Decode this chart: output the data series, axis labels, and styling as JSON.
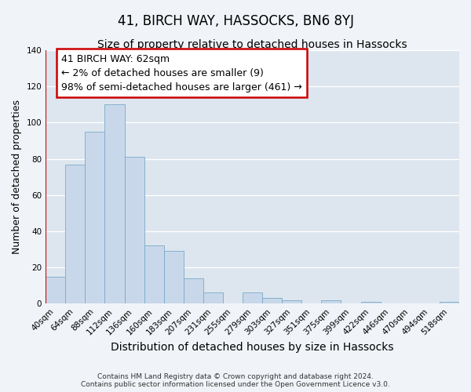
{
  "title": "41, BIRCH WAY, HASSOCKS, BN6 8YJ",
  "subtitle": "Size of property relative to detached houses in Hassocks",
  "xlabel": "Distribution of detached houses by size in Hassocks",
  "ylabel": "Number of detached properties",
  "bar_labels": [
    "40sqm",
    "64sqm",
    "88sqm",
    "112sqm",
    "136sqm",
    "160sqm",
    "183sqm",
    "207sqm",
    "231sqm",
    "255sqm",
    "279sqm",
    "303sqm",
    "327sqm",
    "351sqm",
    "375sqm",
    "399sqm",
    "422sqm",
    "446sqm",
    "470sqm",
    "494sqm",
    "518sqm"
  ],
  "bar_values": [
    15,
    77,
    95,
    110,
    81,
    32,
    29,
    14,
    6,
    0,
    6,
    3,
    2,
    0,
    2,
    0,
    1,
    0,
    0,
    0,
    1
  ],
  "bar_color": "#c8d8ea",
  "bar_edge_color": "#7aaac8",
  "ylim": [
    0,
    140
  ],
  "yticks": [
    0,
    20,
    40,
    60,
    80,
    100,
    120,
    140
  ],
  "vline_color": "#cc0000",
  "annotation_lines": [
    "41 BIRCH WAY: 62sqm",
    "← 2% of detached houses are smaller (9)",
    "98% of semi-detached houses are larger (461) →"
  ],
  "annotation_box_color": "#cc0000",
  "fig_background_color": "#f0f4f8",
  "ax_background_color": "#dde6ef",
  "footer_line1": "Contains HM Land Registry data © Crown copyright and database right 2024.",
  "footer_line2": "Contains public sector information licensed under the Open Government Licence v3.0.",
  "title_fontsize": 12,
  "subtitle_fontsize": 10,
  "xlabel_fontsize": 10,
  "ylabel_fontsize": 9,
  "tick_fontsize": 7.5,
  "annotation_fontsize": 9,
  "footer_fontsize": 6.5
}
